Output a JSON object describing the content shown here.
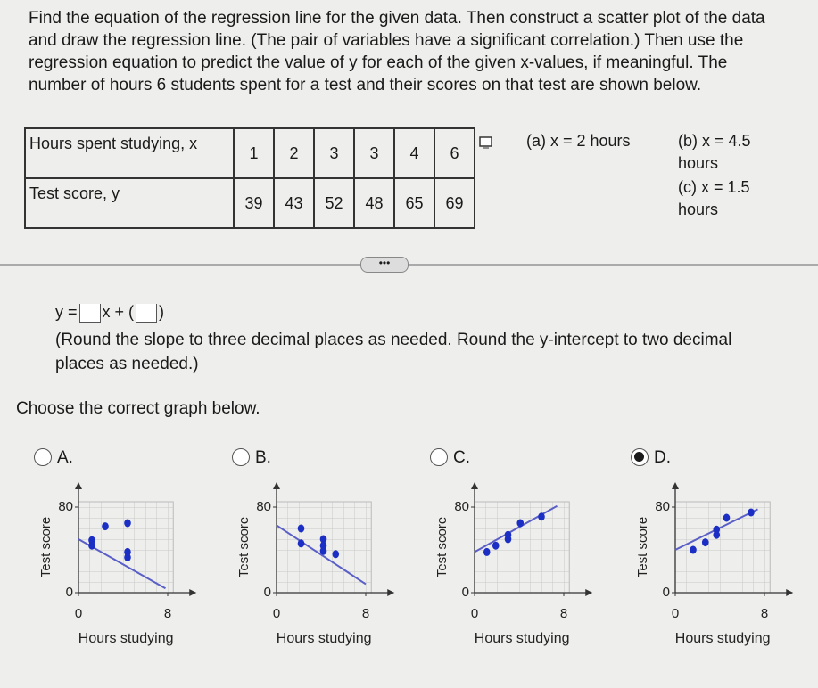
{
  "question": "Find the equation of the regression line for the given data. Then construct a scatter plot of the data and draw the regression line. (The pair of variables have a significant correlation.) Then use the regression equation to predict the value of y for each of the given x-values, if meaningful. The number of hours 6 students spent for a test and their scores on that test are shown below.",
  "table": {
    "rows": [
      [
        "Hours spent studying, x",
        1,
        2,
        3,
        3,
        4,
        6
      ],
      [
        "Test score, y",
        39,
        43,
        52,
        48,
        65,
        69
      ]
    ]
  },
  "parts": [
    "(a) x = 2 hours",
    "(b) x = 4.5 hours",
    "(c) x = 1.5 hours"
  ],
  "equation": {
    "lhs": "y =",
    "mid": "x +"
  },
  "note": "(Round the slope to three decimal places as needed. Round the y-intercept to two decimal places as needed.)",
  "prompt": "Choose the correct graph below.",
  "options": [
    {
      "label": "A.",
      "selected": false,
      "graph": {
        "ylabel": "Test score",
        "xlabel": "Hours studying",
        "xlim": [
          0,
          8.5
        ],
        "ylim": [
          0,
          85
        ],
        "xticks": [
          0,
          8
        ],
        "yticks": [
          0,
          80
        ],
        "points": {
          "x": [
            1.2,
            1.2,
            2.4,
            4.4,
            4.4,
            4.4
          ],
          "y": [
            44,
            49,
            62,
            65,
            38,
            33
          ]
        },
        "line": {
          "x": [
            0,
            7.8
          ],
          "y": [
            50,
            4
          ]
        }
      }
    },
    {
      "label": "B.",
      "selected": false,
      "graph": {
        "ylabel": "Test score",
        "xlabel": "Hours studying",
        "xlim": [
          0,
          8.5
        ],
        "ylim": [
          0,
          85
        ],
        "xticks": [
          0,
          8
        ],
        "yticks": [
          0,
          80
        ],
        "points": {
          "x": [
            2.2,
            2.2,
            4.2,
            4.2,
            4.2,
            5.3
          ],
          "y": [
            60,
            46,
            50,
            44,
            39,
            36
          ]
        },
        "line": {
          "x": [
            0,
            8
          ],
          "y": [
            63,
            8
          ]
        }
      }
    },
    {
      "label": "C.",
      "selected": false,
      "graph": {
        "ylabel": "Test score",
        "xlabel": "Hours studying",
        "xlim": [
          0,
          8.5
        ],
        "ylim": [
          0,
          85
        ],
        "xticks": [
          0,
          8
        ],
        "yticks": [
          0,
          80
        ],
        "points": {
          "x": [
            1.1,
            1.9,
            3,
            3,
            4.1,
            6
          ],
          "y": [
            38,
            44,
            50,
            54,
            65,
            71
          ]
        },
        "line": {
          "x": [
            0,
            7.4
          ],
          "y": [
            38,
            81
          ]
        }
      }
    },
    {
      "label": "D.",
      "selected": true,
      "graph": {
        "ylabel": "Test score",
        "xlabel": "Hours studying",
        "xlim": [
          0,
          8.5
        ],
        "ylim": [
          0,
          85
        ],
        "xticks": [
          0,
          8
        ],
        "yticks": [
          0,
          80
        ],
        "points": {
          "x": [
            1.6,
            2.7,
            3.7,
            3.7,
            4.6,
            6.8
          ],
          "y": [
            40,
            47,
            54,
            59,
            70,
            75
          ]
        },
        "line": {
          "x": [
            0,
            7.4
          ],
          "y": [
            40,
            78
          ]
        }
      }
    }
  ]
}
